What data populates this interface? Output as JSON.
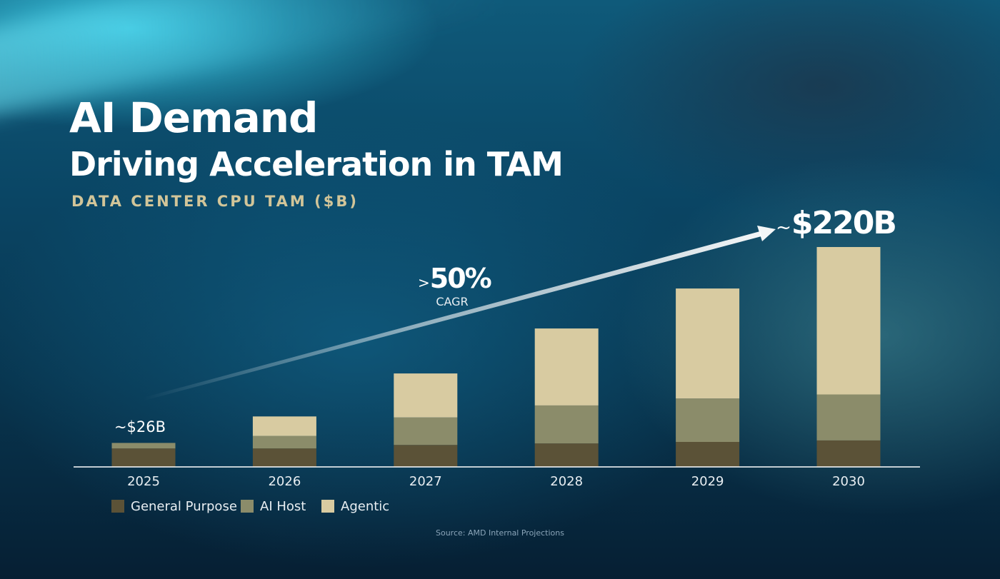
{
  "header": {
    "title": "AI Demand",
    "subtitle": "Driving Acceleration in TAM",
    "metric_label": "DATA CENTER CPU TAM ($B)"
  },
  "footer": {
    "source": "Source: AMD Internal Projections"
  },
  "colors": {
    "general_purpose": "#5b5237",
    "ai_host": "#8b8c6a",
    "agentic": "#d8cba1",
    "metric_label": "#d2c599"
  },
  "chart_data": {
    "type": "bar",
    "stacked": true,
    "categories": [
      "2025",
      "2026",
      "2027",
      "2028",
      "2029",
      "2030"
    ],
    "series": [
      {
        "name": "General Purpose",
        "color": "#5b5237",
        "values": [
          18.5,
          18.5,
          22,
          23.5,
          25,
          26.5
        ]
      },
      {
        "name": "AI Host",
        "color": "#8b8c6a",
        "values": [
          5.5,
          12.5,
          27.5,
          38,
          43.5,
          46
        ]
      },
      {
        "name": "Agentic",
        "color": "#d8cba1",
        "values": [
          0,
          19.5,
          44,
          77,
          110,
          147.5
        ]
      }
    ],
    "ylim": [
      0,
      240
    ],
    "annotations": {
      "first_total": "~$26B",
      "last_total_prefix": "~",
      "last_total": "$220B",
      "growth_prefix": ">",
      "growth_value": "50%",
      "growth_label": "CAGR"
    },
    "legend_position": "bottom-left",
    "grid": false
  }
}
